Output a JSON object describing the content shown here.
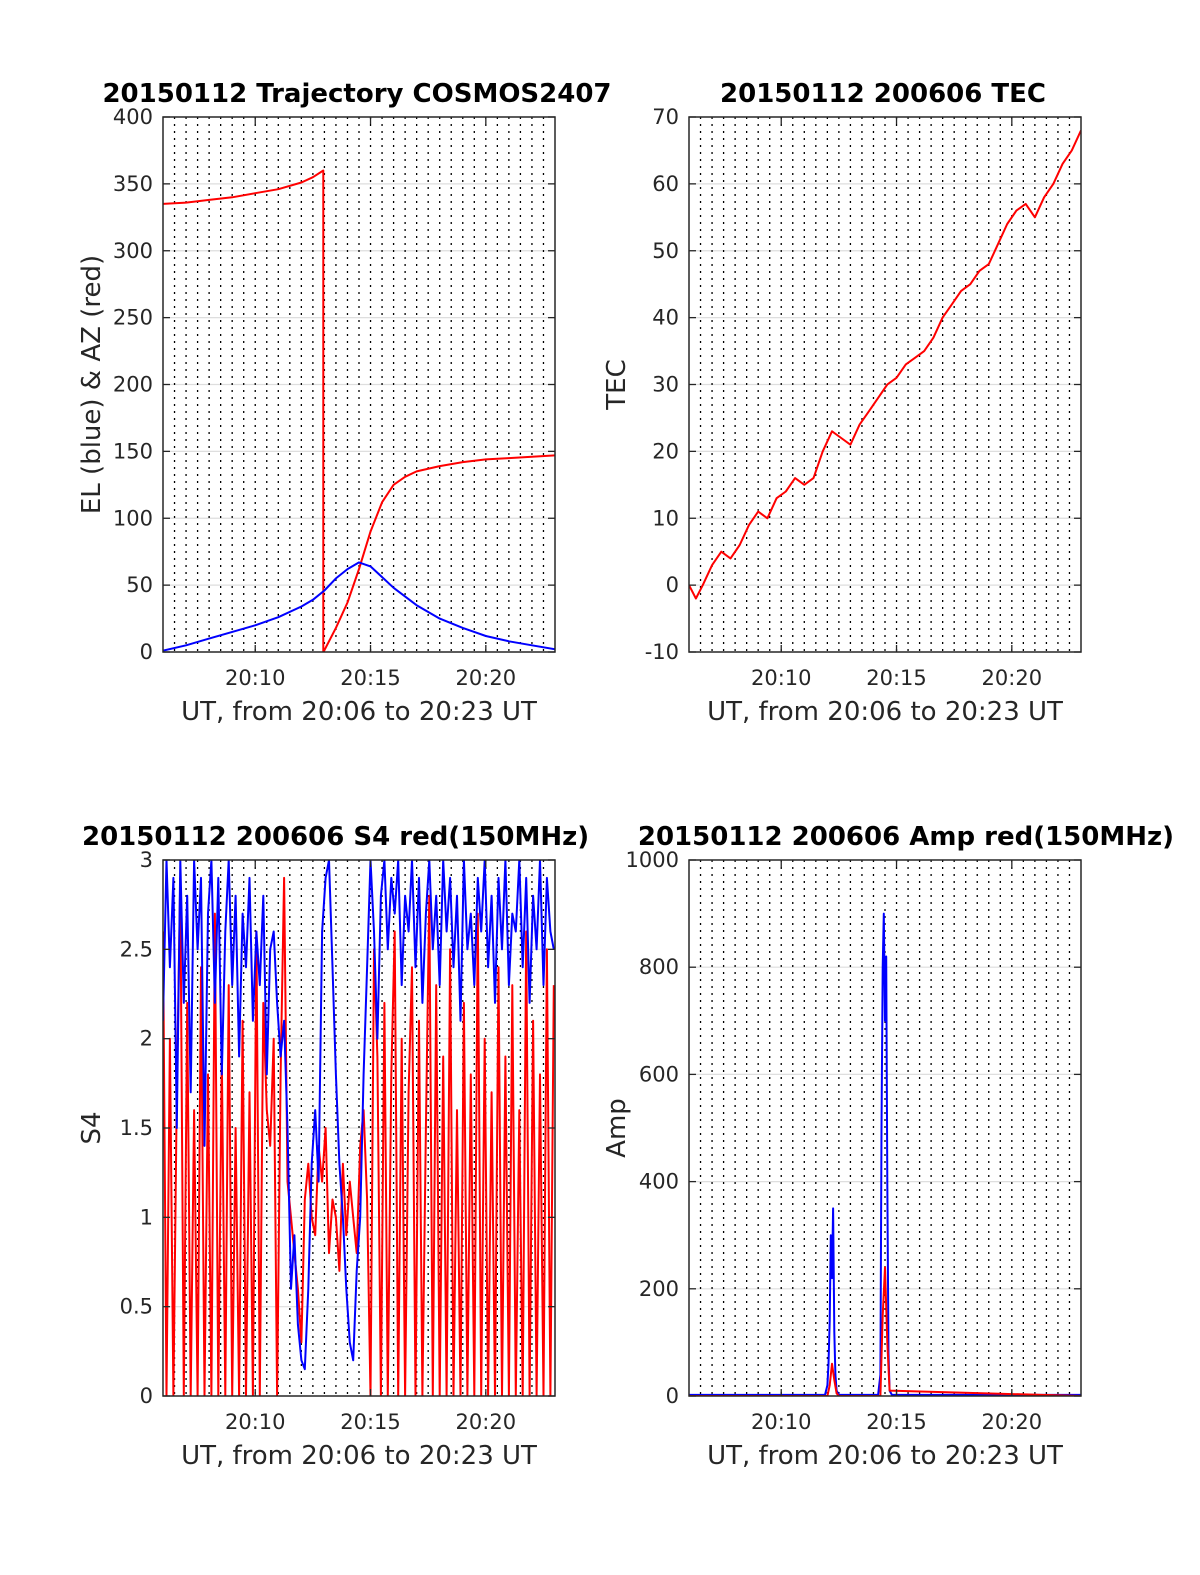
{
  "chart_data": [
    {
      "type": "line",
      "title": "20150112 Trajectory COSMOS2407",
      "xlabel": "UT, from 20:06 to 20:23 UT",
      "ylabel": "EL (blue) & AZ (red)",
      "xlim": [
        6,
        23
      ],
      "ylim": [
        0,
        400
      ],
      "xticks": [
        10,
        15,
        20
      ],
      "xtick_labels": [
        "20:10",
        "20:15",
        "20:20"
      ],
      "yticks": [
        0,
        50,
        100,
        150,
        200,
        250,
        300,
        350,
        400
      ],
      "ytick_labels": [
        "0",
        "50",
        "100",
        "150",
        "200",
        "250",
        "300",
        "350",
        "400"
      ],
      "grid": "dotted vertical lines every 0.5 min, light horizontal lines",
      "series": [
        {
          "color": "#ff0000",
          "x": [
            6.0,
            7.0,
            8.0,
            9.0,
            10.0,
            11.0,
            12.0,
            12.5,
            12.95,
            12.95,
            12.96,
            13.5,
            14.0,
            14.5,
            15.0,
            15.5,
            16.0,
            16.5,
            17.0,
            18.0,
            19.0,
            20.0,
            21.0,
            22.0,
            23.0
          ],
          "y": [
            335,
            336,
            338,
            340,
            343,
            346,
            351,
            355,
            360,
            0,
            0,
            18,
            37,
            62,
            90,
            112,
            125,
            131,
            135,
            139,
            142,
            144,
            145,
            146,
            147
          ]
        },
        {
          "color": "#0000ff",
          "x": [
            6.0,
            7.0,
            8.0,
            9.0,
            10.0,
            11.0,
            12.0,
            12.5,
            13.0,
            13.5,
            14.0,
            14.5,
            15.0,
            15.5,
            16.0,
            17.0,
            18.0,
            19.0,
            20.0,
            21.0,
            22.0,
            23.0
          ],
          "y": [
            1,
            5,
            10,
            15,
            20,
            26,
            34,
            39,
            46,
            55,
            62,
            67,
            64,
            56,
            48,
            35,
            25,
            18,
            12,
            8,
            5,
            2
          ]
        }
      ]
    },
    {
      "type": "line",
      "title": "20150112 200606 TEC",
      "xlabel": "UT, from 20:06 to 20:23 UT",
      "ylabel": "TEC",
      "xlim": [
        6,
        23
      ],
      "ylim": [
        -10,
        70
      ],
      "xticks": [
        10,
        15,
        20
      ],
      "xtick_labels": [
        "20:10",
        "20:15",
        "20:20"
      ],
      "yticks": [
        -10,
        0,
        10,
        20,
        30,
        40,
        50,
        60,
        70
      ],
      "ytick_labels": [
        "-10",
        "0",
        "10",
        "20",
        "30",
        "40",
        "50",
        "60",
        "70"
      ],
      "series": [
        {
          "color": "#ff0000",
          "x": [
            6.0,
            6.3,
            6.6,
            7.0,
            7.4,
            7.8,
            8.2,
            8.6,
            9.0,
            9.4,
            9.8,
            10.2,
            10.6,
            11.0,
            11.4,
            11.8,
            12.2,
            12.6,
            13.0,
            13.4,
            13.8,
            14.2,
            14.6,
            15.0,
            15.4,
            15.8,
            16.2,
            16.6,
            17.0,
            17.4,
            17.8,
            18.2,
            18.6,
            19.0,
            19.4,
            19.8,
            20.2,
            20.6,
            21.0,
            21.4,
            21.8,
            22.2,
            22.6,
            23.0
          ],
          "y": [
            0,
            -2,
            0,
            3,
            5,
            4,
            6,
            9,
            11,
            10,
            13,
            14,
            16,
            15,
            16,
            20,
            23,
            22,
            21,
            24,
            26,
            28,
            30,
            31,
            33,
            34,
            35,
            37,
            40,
            42,
            44,
            45,
            47,
            48,
            51,
            54,
            56,
            57,
            55,
            58,
            60,
            63,
            65,
            68
          ]
        }
      ]
    },
    {
      "type": "line",
      "title": "20150112 200606 S4 red(150MHz)",
      "xlabel": "UT, from 20:06 to 20:23 UT",
      "ylabel": "S4",
      "xlim": [
        6,
        23
      ],
      "ylim": [
        0,
        3
      ],
      "xticks": [
        10,
        15,
        20
      ],
      "xtick_labels": [
        "20:10",
        "20:15",
        "20:20"
      ],
      "yticks": [
        0,
        0.5,
        1,
        1.5,
        2,
        2.5,
        3
      ],
      "ytick_labels": [
        "0",
        "0.5",
        "1",
        "1.5",
        "2",
        "2.5",
        "3"
      ],
      "series": [
        {
          "color": "#ff0000",
          "x": [
            6.0,
            6.15,
            6.3,
            6.45,
            6.6,
            6.75,
            6.9,
            7.05,
            7.2,
            7.35,
            7.5,
            7.65,
            7.8,
            7.95,
            8.1,
            8.25,
            8.4,
            8.55,
            8.7,
            8.85,
            9.0,
            9.15,
            9.3,
            9.45,
            9.6,
            9.75,
            9.9,
            10.05,
            10.2,
            10.35,
            10.5,
            10.65,
            10.8,
            10.95,
            11.1,
            11.25,
            11.4,
            11.55,
            11.7,
            11.85,
            12.0,
            12.15,
            12.3,
            12.45,
            12.6,
            12.75,
            12.9,
            13.05,
            13.2,
            13.35,
            13.5,
            13.65,
            13.8,
            13.95,
            14.1,
            14.25,
            14.4,
            14.55,
            14.7,
            14.85,
            15.0,
            15.15,
            15.3,
            15.45,
            15.6,
            15.75,
            15.9,
            16.05,
            16.2,
            16.35,
            16.5,
            16.65,
            16.8,
            16.95,
            17.1,
            17.25,
            17.4,
            17.55,
            17.7,
            17.85,
            18.0,
            18.15,
            18.3,
            18.45,
            18.6,
            18.75,
            18.9,
            19.05,
            19.2,
            19.35,
            19.5,
            19.65,
            19.8,
            19.95,
            20.1,
            20.25,
            20.4,
            20.55,
            20.7,
            20.85,
            21.0,
            21.15,
            21.3,
            21.45,
            21.6,
            21.75,
            21.9,
            22.05,
            22.2,
            22.35,
            22.5,
            22.65,
            22.8,
            22.95
          ],
          "y": [
            2.6,
            0,
            2.0,
            0,
            1.7,
            2.9,
            0,
            2.2,
            0,
            1.6,
            0,
            2.4,
            0,
            1.8,
            0,
            2.7,
            0,
            1.9,
            0,
            2.3,
            0,
            1.5,
            0,
            2.1,
            0,
            1.7,
            0,
            2.6,
            0,
            2.2,
            1.6,
            1.4,
            2.0,
            0,
            1.8,
            2.9,
            1.2,
            1.0,
            0.8,
            0.6,
            0.3,
            1.1,
            1.3,
            1.0,
            0.9,
            1.4,
            1.2,
            1.5,
            0.8,
            1.1,
            1.0,
            0.7,
            1.3,
            0.9,
            1.2,
            1.0,
            0.8,
            1.4,
            1.6,
            1.1,
            0,
            2.5,
            1.9,
            0,
            2.2,
            0,
            1.8,
            2.6,
            0,
            2.0,
            0,
            1.7,
            2.4,
            0,
            2.1,
            0,
            1.5,
            2.8,
            0,
            2.3,
            0,
            1.9,
            0,
            2.5,
            0,
            1.6,
            0,
            2.2,
            0,
            1.8,
            0,
            2.7,
            0,
            2.0,
            0,
            1.7,
            0,
            2.4,
            0,
            1.9,
            0,
            2.3,
            0,
            1.6,
            0,
            2.6,
            0,
            2.1,
            0,
            1.8,
            0,
            2.5,
            0,
            2.3
          ]
        },
        {
          "color": "#0000ff",
          "x": [
            6.0,
            6.15,
            6.3,
            6.45,
            6.6,
            6.75,
            6.9,
            7.05,
            7.2,
            7.35,
            7.5,
            7.65,
            7.8,
            7.95,
            8.1,
            8.25,
            8.4,
            8.55,
            8.7,
            8.85,
            9.0,
            9.15,
            9.3,
            9.45,
            9.6,
            9.75,
            9.9,
            10.05,
            10.2,
            10.35,
            10.5,
            10.65,
            10.8,
            10.95,
            11.1,
            11.25,
            11.4,
            11.55,
            11.7,
            11.85,
            12.0,
            12.15,
            12.3,
            12.45,
            12.6,
            12.75,
            12.9,
            13.05,
            13.2,
            13.35,
            13.5,
            13.65,
            13.8,
            13.95,
            14.1,
            14.25,
            14.4,
            14.55,
            14.7,
            14.85,
            15.0,
            15.15,
            15.3,
            15.45,
            15.6,
            15.75,
            15.9,
            16.05,
            16.2,
            16.35,
            16.5,
            16.65,
            16.8,
            16.95,
            17.1,
            17.25,
            17.4,
            17.55,
            17.7,
            17.85,
            18.0,
            18.15,
            18.3,
            18.45,
            18.6,
            18.75,
            18.9,
            19.05,
            19.2,
            19.35,
            19.5,
            19.65,
            19.8,
            19.95,
            20.1,
            20.25,
            20.4,
            20.55,
            20.7,
            20.85,
            21.0,
            21.15,
            21.3,
            21.45,
            21.6,
            21.75,
            21.9,
            22.05,
            22.2,
            22.35,
            22.5,
            22.65,
            22.8,
            22.95
          ],
          "y": [
            2.1,
            3.0,
            2.4,
            2.9,
            1.5,
            3.0,
            2.2,
            2.8,
            1.7,
            3.0,
            2.5,
            2.9,
            1.4,
            2.7,
            3.0,
            2.2,
            2.9,
            1.8,
            2.6,
            3.0,
            2.3,
            2.8,
            1.9,
            2.7,
            2.4,
            2.9,
            2.1,
            2.6,
            2.3,
            2.8,
            1.8,
            2.5,
            2.6,
            2.2,
            1.9,
            2.1,
            1.5,
            0.6,
            0.9,
            0.4,
            0.2,
            0.15,
            0.6,
            1.3,
            1.6,
            1.2,
            2.6,
            2.9,
            3.0,
            2.4,
            1.8,
            1.3,
            1.0,
            0.6,
            0.3,
            0.2,
            0.7,
            1.0,
            1.8,
            2.4,
            3.0,
            2.6,
            2.0,
            2.8,
            3.0,
            2.5,
            2.9,
            2.7,
            3.0,
            2.3,
            2.8,
            2.6,
            3.0,
            2.4,
            2.9,
            2.2,
            2.7,
            3.0,
            2.5,
            2.8,
            2.3,
            3.0,
            2.6,
            2.9,
            2.4,
            2.8,
            2.1,
            3.0,
            2.5,
            2.7,
            2.3,
            2.9,
            2.6,
            3.0,
            2.4,
            2.8,
            2.2,
            2.9,
            2.5,
            3.0,
            2.3,
            2.7,
            2.6,
            3.0,
            2.4,
            2.9,
            2.2,
            2.8,
            2.5,
            3.0,
            2.3,
            2.9,
            2.6,
            2.5
          ]
        }
      ]
    },
    {
      "type": "line",
      "title": "20150112 200606 Amp red(150MHz)",
      "xlabel": "UT, from 20:06 to 20:23 UT",
      "ylabel": "Amp",
      "xlim": [
        6,
        23
      ],
      "ylim": [
        0,
        1000
      ],
      "xticks": [
        10,
        15,
        20
      ],
      "xtick_labels": [
        "20:10",
        "20:15",
        "20:20"
      ],
      "yticks": [
        0,
        200,
        400,
        600,
        800,
        1000
      ],
      "ytick_labels": [
        "0",
        "200",
        "400",
        "600",
        "800",
        "1000"
      ],
      "series": [
        {
          "color": "#0000ff",
          "x": [
            6.0,
            11.9,
            12.0,
            12.05,
            12.1,
            12.15,
            12.2,
            12.25,
            12.3,
            12.35,
            12.4,
            12.5,
            14.2,
            14.3,
            14.35,
            14.4,
            14.45,
            14.5,
            14.55,
            14.6,
            14.65,
            14.7,
            14.8,
            23.0
          ],
          "y": [
            2,
            2,
            20,
            60,
            140,
            300,
            220,
            350,
            120,
            40,
            10,
            2,
            2,
            40,
            500,
            800,
            900,
            700,
            820,
            400,
            80,
            10,
            2,
            2
          ]
        },
        {
          "color": "#ff0000",
          "x": [
            6.0,
            12.0,
            12.1,
            12.2,
            12.3,
            12.4,
            12.5,
            14.3,
            14.4,
            14.5,
            14.6,
            14.7,
            23.0
          ],
          "y": [
            0,
            0,
            20,
            60,
            30,
            5,
            0,
            0,
            150,
            240,
            100,
            10,
            0
          ]
        }
      ]
    }
  ]
}
